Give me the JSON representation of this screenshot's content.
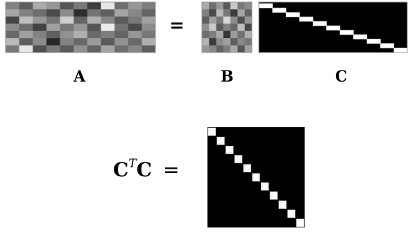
{
  "labels": {
    "equals": "=",
    "a": "A",
    "b": "B",
    "c": "C",
    "ctc_base": "C",
    "ctc_sup": "T",
    "ctc_base2": "C",
    "ctc_equals": "="
  },
  "matrix_a": {
    "rows": 7,
    "cols": 11,
    "gray": [
      [
        130,
        95,
        170,
        150,
        85,
        120,
        60,
        230,
        110,
        150,
        125
      ],
      [
        165,
        130,
        110,
        75,
        140,
        45,
        115,
        95,
        165,
        135,
        100
      ],
      [
        70,
        190,
        150,
        115,
        205,
        100,
        175,
        135,
        90,
        120,
        160
      ],
      [
        140,
        110,
        65,
        160,
        120,
        150,
        85,
        235,
        115,
        75,
        140
      ],
      [
        105,
        160,
        130,
        95,
        145,
        175,
        105,
        125,
        100,
        150,
        120
      ],
      [
        185,
        95,
        140,
        40,
        130,
        105,
        155,
        90,
        145,
        105,
        175
      ],
      [
        120,
        230,
        80,
        120,
        90,
        145,
        100,
        165,
        110,
        135,
        95
      ]
    ]
  },
  "matrix_b": {
    "rows": 7,
    "cols": 7,
    "gray": [
      [
        170,
        110,
        150,
        90,
        200,
        120,
        140
      ],
      [
        130,
        75,
        185,
        120,
        60,
        165,
        100
      ],
      [
        95,
        160,
        120,
        215,
        140,
        80,
        150
      ],
      [
        145,
        200,
        90,
        130,
        105,
        190,
        70
      ],
      [
        110,
        125,
        170,
        55,
        155,
        115,
        175
      ],
      [
        180,
        60,
        140,
        160,
        95,
        135,
        120
      ],
      [
        150,
        135,
        100,
        125,
        170,
        85,
        160
      ]
    ]
  },
  "matrix_c": {
    "rows": 7,
    "cols": 11,
    "background": "#000000",
    "highlight": "#ffffff"
  },
  "matrix_ctc": {
    "rows": 11,
    "cols": 11,
    "background": "#000000",
    "highlight": "#ffffff"
  }
}
